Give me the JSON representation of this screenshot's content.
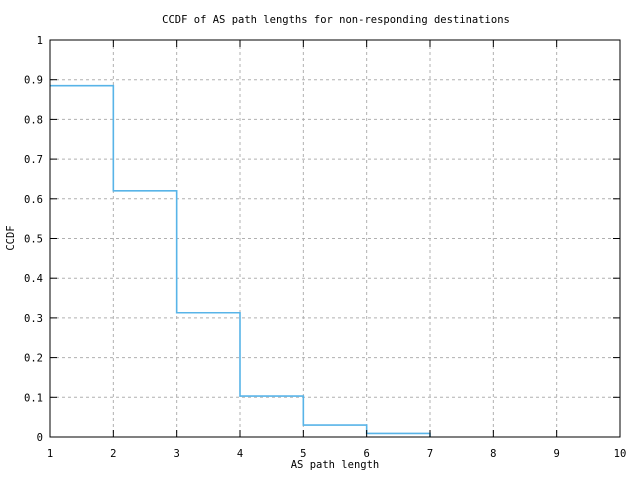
{
  "chart_data": {
    "type": "line",
    "style": "steps",
    "title": "CCDF of AS path lengths for non-responding destinations",
    "xlabel": "AS path length",
    "ylabel": "CCDF",
    "xlim": [
      1,
      10
    ],
    "ylim": [
      0,
      1
    ],
    "xticks": [
      1,
      2,
      3,
      4,
      5,
      6,
      7,
      8,
      9,
      10
    ],
    "xtick_labels": [
      "1",
      "2",
      "3",
      "4",
      "5",
      "6",
      "7",
      "8",
      "9",
      "10"
    ],
    "yticks": [
      0,
      0.1,
      0.2,
      0.3,
      0.4,
      0.5,
      0.6,
      0.7,
      0.8,
      0.9,
      1
    ],
    "ytick_labels": [
      "0",
      "0.1",
      "0.2",
      "0.3",
      "0.4",
      "0.5",
      "0.6",
      "0.7",
      "0.8",
      "0.9",
      "1"
    ],
    "grid": true,
    "legend_position": "none",
    "colors": {
      "line": "#58b4e8",
      "grid": "#b0b0b0",
      "axis": "#000000",
      "background": "#ffffff",
      "text": "#000000"
    },
    "points": [
      {
        "x": 1,
        "y": 0.885
      },
      {
        "x": 2,
        "y": 0.62
      },
      {
        "x": 3,
        "y": 0.313
      },
      {
        "x": 4,
        "y": 0.103
      },
      {
        "x": 5,
        "y": 0.03
      },
      {
        "x": 6,
        "y": 0.009
      },
      {
        "x": 7,
        "y": 0
      }
    ]
  }
}
